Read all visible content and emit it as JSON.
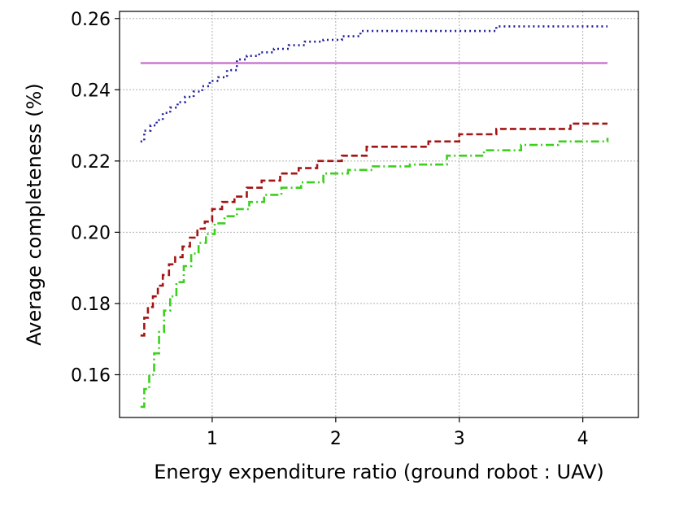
{
  "chart_data": {
    "type": "line",
    "title": "",
    "xlabel": "Energy expenditure ratio (ground robot : UAV)",
    "ylabel": "Average completeness (%)",
    "xlim": [
      0.25,
      4.45
    ],
    "ylim": [
      0.148,
      0.262
    ],
    "x_ticks": [
      1,
      2,
      3,
      4
    ],
    "y_ticks": [
      0.16,
      0.18,
      0.2,
      0.22,
      0.24,
      0.26
    ],
    "x_tick_labels": [
      "1",
      "2",
      "3",
      "4"
    ],
    "y_tick_labels": [
      "0.16",
      "0.18",
      "0.20",
      "0.22",
      "0.24",
      "0.26"
    ],
    "grid": true,
    "series": [
      {
        "color": "#1f1f9c",
        "style": "dotted",
        "step": true,
        "x": [
          0.42,
          0.45,
          0.5,
          0.55,
          0.6,
          0.66,
          0.72,
          0.78,
          0.85,
          0.92,
          0.98,
          1.05,
          1.12,
          1.2,
          1.28,
          1.38,
          1.5,
          1.62,
          1.75,
          1.9,
          2.05,
          2.2,
          2.4,
          2.7,
          3.0,
          3.3,
          3.6,
          3.9,
          4.2
        ],
        "y": [
          0.2255,
          0.2285,
          0.23,
          0.2315,
          0.2335,
          0.235,
          0.2365,
          0.238,
          0.2395,
          0.241,
          0.2425,
          0.2435,
          0.2455,
          0.2485,
          0.2495,
          0.2505,
          0.2515,
          0.2525,
          0.2535,
          0.254,
          0.255,
          0.2565,
          0.2565,
          0.2565,
          0.2565,
          0.2578,
          0.2578,
          0.2578,
          0.2578
        ]
      },
      {
        "color": "#c77cd1",
        "style": "solid",
        "step": false,
        "x": [
          0.42,
          4.2
        ],
        "y": [
          0.2475,
          0.2475
        ]
      },
      {
        "color": "#a31515",
        "style": "dashed",
        "step": true,
        "x": [
          0.42,
          0.45,
          0.48,
          0.52,
          0.56,
          0.6,
          0.65,
          0.7,
          0.76,
          0.82,
          0.88,
          0.94,
          1.0,
          1.08,
          1.18,
          1.28,
          1.4,
          1.55,
          1.7,
          1.85,
          2.05,
          2.25,
          2.5,
          2.75,
          3.0,
          3.3,
          3.6,
          3.9,
          4.2
        ],
        "y": [
          0.171,
          0.176,
          0.179,
          0.182,
          0.185,
          0.188,
          0.191,
          0.193,
          0.196,
          0.1985,
          0.201,
          0.203,
          0.2065,
          0.2085,
          0.21,
          0.2125,
          0.2145,
          0.2165,
          0.218,
          0.22,
          0.2215,
          0.224,
          0.224,
          0.2255,
          0.2275,
          0.229,
          0.229,
          0.2305,
          0.2305
        ]
      },
      {
        "color": "#3ccf1e",
        "style": "dashdot",
        "step": true,
        "x": [
          0.42,
          0.45,
          0.49,
          0.53,
          0.57,
          0.61,
          0.66,
          0.71,
          0.77,
          0.83,
          0.89,
          0.95,
          1.02,
          1.1,
          1.2,
          1.3,
          1.42,
          1.56,
          1.72,
          1.9,
          2.1,
          2.3,
          2.6,
          2.9,
          3.2,
          3.5,
          3.8,
          4.05,
          4.2
        ],
        "y": [
          0.151,
          0.156,
          0.16,
          0.166,
          0.172,
          0.178,
          0.182,
          0.186,
          0.1905,
          0.194,
          0.197,
          0.1995,
          0.2025,
          0.2045,
          0.2065,
          0.2085,
          0.2105,
          0.2125,
          0.214,
          0.2165,
          0.2175,
          0.2185,
          0.219,
          0.2215,
          0.223,
          0.2245,
          0.2255,
          0.2255,
          0.2265
        ]
      }
    ]
  }
}
